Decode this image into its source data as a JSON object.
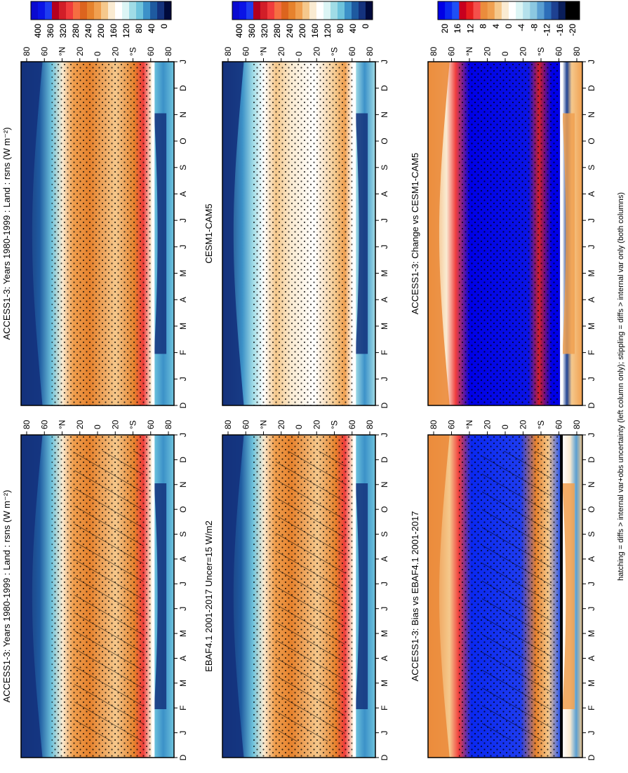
{
  "figure": {
    "footnote": "hatching = diffs > internal var+obs uncertainty (left column only); stippling = diffs > internal var only (both columns)"
  },
  "months_axis": [
    "D",
    "J",
    "F",
    "M",
    "A",
    "M",
    "J",
    "J",
    "A",
    "S",
    "O",
    "N",
    "D",
    "J"
  ],
  "lat_axis": [
    "80",
    "60",
    "°N",
    "20",
    "0",
    "20",
    "°S",
    "60",
    "80"
  ],
  "colors": {
    "abs_scale": [
      "#0a0ad0",
      "#0a14e6",
      "#1e3cf0",
      "#b4001e",
      "#d21e28",
      "#f03c3c",
      "#f56e41",
      "#dc641e",
      "#e6822d",
      "#f0a050",
      "#f5c88c",
      "#faebd2",
      "#ffffff",
      "#dcf5f5",
      "#a0dce6",
      "#6ec3dc",
      "#3c91c8",
      "#1e5aa0",
      "#14327d",
      "#000a3c"
    ],
    "diff_scale": [
      "#0000e6",
      "#0a28f0",
      "#1e50f5",
      "#c8001e",
      "#e61e1e",
      "#f5504b",
      "#eb8c3c",
      "#f0a050",
      "#f5c88c",
      "#faebd2",
      "#ffffff",
      "#dcf5f5",
      "#b4e1ec",
      "#8cc8e1",
      "#5a9fd2",
      "#2d6eb9",
      "#1e4191",
      "#0a1e5a",
      "#000000",
      "#000000"
    ]
  },
  "chart_data": [
    {
      "type": "heatmap",
      "title": "ACCESS1-3: Years 1980-1999 : Land : rsns (W m⁻²)",
      "x_labels": [
        "D",
        "J",
        "F",
        "M",
        "A",
        "M",
        "J",
        "J",
        "A",
        "S",
        "O",
        "N",
        "D",
        "J"
      ],
      "y_labels": [
        "80",
        "60",
        "°N",
        "20",
        "0",
        "20",
        "°S",
        "60",
        "80"
      ],
      "colorbar": {
        "ticks": [
          "400",
          "360",
          "320",
          "280",
          "240",
          "200",
          "160",
          "120",
          "80",
          "40",
          "0"
        ],
        "range": [
          0,
          400
        ]
      },
      "hatching": true,
      "stippling": true
    },
    {
      "type": "heatmap",
      "title": "ACCESS1-3: Years 1980-1999 : Land : rsns (W m⁻²)",
      "x_labels": [
        "D",
        "J",
        "F",
        "M",
        "A",
        "M",
        "J",
        "J",
        "A",
        "S",
        "O",
        "N",
        "D",
        "J"
      ],
      "y_labels": [
        "80",
        "60",
        "°N",
        "20",
        "0",
        "20",
        "°S",
        "60",
        "80"
      ],
      "colorbar": {
        "ticks": [
          "400",
          "360",
          "320",
          "280",
          "240",
          "200",
          "160",
          "120",
          "80",
          "40",
          "0"
        ],
        "range": [
          0,
          400
        ]
      },
      "hatching": false,
      "stippling": true
    },
    {
      "type": "heatmap",
      "title": "EBAF4.1 2001-2017 Uncer=15 W/m2",
      "x_labels": [
        "D",
        "J",
        "F",
        "M",
        "A",
        "M",
        "J",
        "J",
        "A",
        "S",
        "O",
        "N",
        "D",
        "J"
      ],
      "y_labels": [
        "80",
        "60",
        "°N",
        "20",
        "0",
        "20",
        "°S",
        "60",
        "80"
      ],
      "colorbar": {
        "ticks": [
          "400",
          "360",
          "320",
          "280",
          "240",
          "200",
          "160",
          "120",
          "80",
          "40",
          "0"
        ],
        "range": [
          0,
          400
        ]
      },
      "hatching": true,
      "stippling": true
    },
    {
      "type": "heatmap",
      "title": "CESM1-CAM5",
      "x_labels": [
        "D",
        "J",
        "F",
        "M",
        "A",
        "M",
        "J",
        "J",
        "A",
        "S",
        "O",
        "N",
        "D",
        "J"
      ],
      "y_labels": [
        "80",
        "60",
        "°N",
        "20",
        "0",
        "20",
        "°S",
        "60",
        "80"
      ],
      "colorbar": {
        "ticks": [
          "400",
          "360",
          "320",
          "280",
          "240",
          "200",
          "160",
          "120",
          "80",
          "40",
          "0"
        ],
        "range": [
          0,
          400
        ]
      },
      "hatching": false,
      "stippling": true
    },
    {
      "type": "heatmap",
      "title": "ACCESS1-3: Bias vs EBAF4.1 2001-2017",
      "x_labels": [
        "D",
        "J",
        "F",
        "M",
        "A",
        "M",
        "J",
        "J",
        "A",
        "S",
        "O",
        "N",
        "D",
        "J"
      ],
      "y_labels": [
        "80",
        "60",
        "°N",
        "20",
        "0",
        "20",
        "°S",
        "60",
        "80"
      ],
      "colorbar": {
        "ticks": [
          "20",
          "16",
          "12",
          "8",
          "4",
          "0",
          "-4",
          "-8",
          "-12",
          "-16",
          "-20"
        ],
        "range": [
          -20,
          20
        ]
      },
      "hatching": true,
      "stippling": true
    },
    {
      "type": "heatmap",
      "title": "ACCESS1-3: Change vs CESM1-CAM5",
      "x_labels": [
        "D",
        "J",
        "F",
        "M",
        "A",
        "M",
        "J",
        "J",
        "A",
        "S",
        "O",
        "N",
        "D",
        "J"
      ],
      "y_labels": [
        "80",
        "60",
        "°N",
        "20",
        "0",
        "20",
        "°S",
        "60",
        "80"
      ],
      "colorbar": {
        "ticks": [
          "20",
          "16",
          "12",
          "8",
          "4",
          "0",
          "-4",
          "-8",
          "-12",
          "-16",
          "-20"
        ],
        "range": [
          -20,
          20
        ]
      },
      "hatching": false,
      "stippling": true
    }
  ]
}
